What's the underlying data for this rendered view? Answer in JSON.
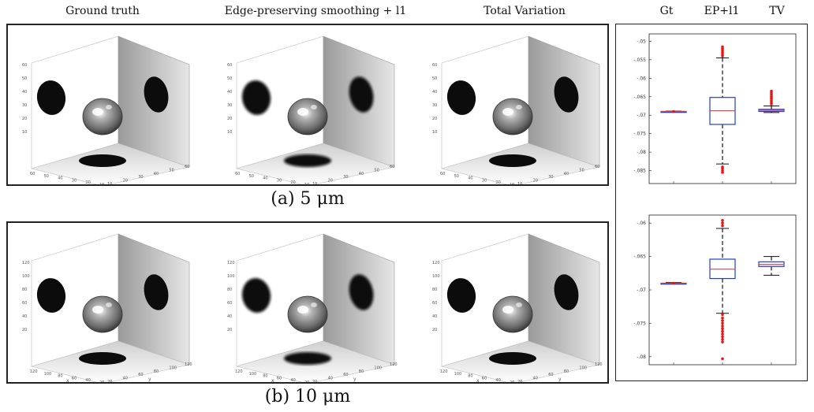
{
  "column_headers": [
    "Ground truth",
    "Edge-preserving smoothing + l1",
    "Total Variation"
  ],
  "boxplot_headers": [
    "Gt",
    "EP+l1",
    "TV"
  ],
  "captions": [
    "(a) 5 μm",
    "(b) 10 μm"
  ],
  "render_axes": {
    "a": {
      "z_ticks": [
        "60",
        "50",
        "40",
        "30",
        "20",
        "10"
      ],
      "x_ticks": [
        "60",
        "50",
        "40",
        "30",
        "20",
        "10"
      ],
      "y_ticks": [
        "10",
        "20",
        "30",
        "40",
        "50",
        "60"
      ]
    },
    "b": {
      "z_ticks": [
        "120",
        "100",
        "80",
        "60",
        "40",
        "20"
      ],
      "x_ticks": [
        "120",
        "100",
        "80",
        "60",
        "40",
        "20"
      ],
      "y_ticks": [
        "20",
        "40",
        "60",
        "80",
        "100",
        "120"
      ],
      "x_label": "x",
      "y_label": "y"
    }
  },
  "chart_data": [
    {
      "type": "box",
      "categories": [
        "Gt",
        "EP+l1",
        "TV"
      ],
      "ylim": [
        -0.0885,
        -0.048
      ],
      "yticks": [
        -0.05,
        -0.055,
        -0.06,
        -0.065,
        -0.07,
        -0.075,
        -0.08,
        -0.085
      ],
      "ytick_labels": [
        "-.05",
        "-.055",
        "-.06",
        "-.065",
        "-.07",
        "-.075",
        "-.08",
        "-.085"
      ],
      "boxes": [
        {
          "name": "Gt",
          "q1": -0.069,
          "median": -0.069,
          "q3": -0.069,
          "whisker_low": -0.0691,
          "whisker_high": -0.0689,
          "outliers": [
            -0.069
          ]
        },
        {
          "name": "EP+l1",
          "q1": -0.0725,
          "median": -0.0688,
          "q3": -0.0652,
          "whisker_low": -0.0832,
          "whisker_high": -0.0545,
          "outliers": [
            -0.0515,
            -0.052,
            -0.0525,
            -0.053,
            -0.0535,
            -0.054,
            -0.084,
            -0.0845,
            -0.085,
            -0.0855
          ]
        },
        {
          "name": "TV",
          "q1": -0.069,
          "median": -0.0687,
          "q3": -0.0684,
          "whisker_low": -0.0693,
          "whisker_high": -0.0675,
          "outliers": [
            -0.0635,
            -0.064,
            -0.0645,
            -0.065,
            -0.0655,
            -0.066,
            -0.0665,
            -0.067
          ]
        }
      ]
    },
    {
      "type": "box",
      "categories": [
        "Gt",
        "EP+l1",
        "TV"
      ],
      "ylim": [
        -0.0812,
        -0.0588
      ],
      "yticks": [
        -0.06,
        -0.065,
        -0.07,
        -0.075,
        -0.08
      ],
      "ytick_labels": [
        "-.06",
        "-.065",
        "-.07",
        "-.075",
        "-.08"
      ],
      "boxes": [
        {
          "name": "Gt",
          "q1": -0.069,
          "median": -0.069,
          "q3": -0.069,
          "whisker_low": -0.0691,
          "whisker_high": -0.0689,
          "outliers": [
            -0.069
          ]
        },
        {
          "name": "EP+l1",
          "q1": -0.0683,
          "median": -0.0669,
          "q3": -0.0654,
          "whisker_low": -0.0735,
          "whisker_high": -0.0608,
          "outliers": [
            -0.0596,
            -0.06,
            -0.0604,
            -0.0737,
            -0.0742,
            -0.0746,
            -0.075,
            -0.0754,
            -0.0758,
            -0.0762,
            -0.0766,
            -0.077,
            -0.0774,
            -0.0778,
            -0.0803
          ]
        },
        {
          "name": "TV",
          "q1": -0.0665,
          "median": -0.0662,
          "q3": -0.0658,
          "whisker_low": -0.0678,
          "whisker_high": -0.065,
          "outliers": []
        }
      ]
    }
  ],
  "colors": {
    "box": "#1f3fd6",
    "median": "#e04040",
    "outlier": "#e01818",
    "whisker": "#111111"
  }
}
